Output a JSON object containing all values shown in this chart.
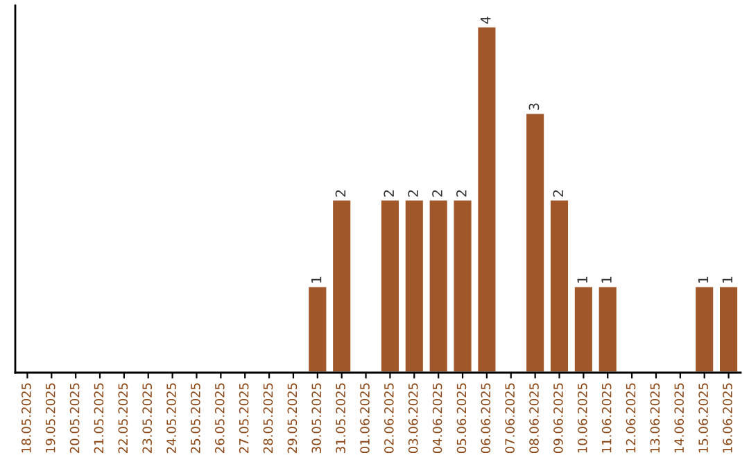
{
  "chart_data": {
    "type": "bar",
    "categories": [
      "18.05.2025",
      "19.05.2025",
      "20.05.2025",
      "21.05.2025",
      "22.05.2025",
      "23.05.2025",
      "24.05.2025",
      "25.05.2025",
      "26.05.2025",
      "27.05.2025",
      "28.05.2025",
      "29.05.2025",
      "30.05.2025",
      "31.05.2025",
      "01.06.2025",
      "02.06.2025",
      "03.06.2025",
      "04.06.2025",
      "05.06.2025",
      "06.06.2025",
      "07.06.2025",
      "08.06.2025",
      "09.06.2025",
      "10.06.2025",
      "11.06.2025",
      "12.06.2025",
      "13.06.2025",
      "14.06.2025",
      "15.06.2025",
      "16.06.2025"
    ],
    "values": [
      null,
      null,
      null,
      null,
      null,
      null,
      null,
      null,
      null,
      null,
      null,
      null,
      1,
      2,
      null,
      2,
      2,
      2,
      2,
      4,
      null,
      3,
      2,
      1,
      1,
      null,
      null,
      null,
      1,
      1
    ],
    "data_labels": true,
    "color": "#a0582a",
    "tick_labels": "x",
    "grid": false,
    "legend": false
  }
}
